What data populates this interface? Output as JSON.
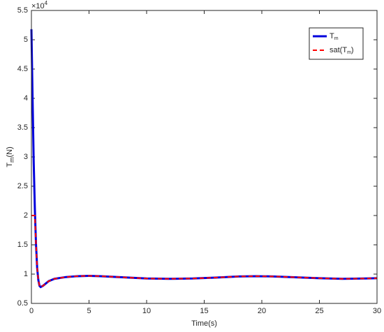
{
  "chart_data": {
    "type": "line",
    "xlabel": "Time(s)",
    "ylabel": {
      "text": "T",
      "sub": "m",
      "suffix": "(N)"
    },
    "y_multiplier": {
      "base": "×10",
      "exponent": "4"
    },
    "x": [
      0,
      0.1,
      0.2,
      0.3,
      0.4,
      0.5,
      0.6,
      0.7,
      0.8,
      1,
      1.5,
      2,
      3,
      4,
      5,
      6,
      8,
      10,
      12,
      14,
      16,
      18,
      19.5,
      21,
      23,
      25,
      27,
      29,
      30
    ],
    "series": [
      {
        "label": {
          "text": "T",
          "sub": "m"
        },
        "color": "#0000dd",
        "dash": false,
        "values": [
          5.18,
          4.0,
          2.9,
          2.1,
          1.5,
          1.1,
          0.9,
          0.8,
          0.78,
          0.8,
          0.88,
          0.92,
          0.95,
          0.965,
          0.97,
          0.965,
          0.945,
          0.925,
          0.92,
          0.925,
          0.94,
          0.96,
          0.965,
          0.96,
          0.945,
          0.93,
          0.92,
          0.925,
          0.93
        ]
      },
      {
        "label": {
          "text": "sat(T",
          "sub": "m",
          "suffix": ")"
        },
        "color": "#ff0000",
        "dash": true,
        "values": [
          2.0,
          2.0,
          2.0,
          2.0,
          1.5,
          1.1,
          0.9,
          0.8,
          0.78,
          0.8,
          0.88,
          0.92,
          0.95,
          0.965,
          0.97,
          0.965,
          0.945,
          0.925,
          0.92,
          0.925,
          0.94,
          0.96,
          0.965,
          0.96,
          0.945,
          0.93,
          0.92,
          0.925,
          0.93
        ]
      }
    ],
    "xlim": [
      0,
      30
    ],
    "xticks": [
      0,
      5,
      10,
      15,
      20,
      25,
      30
    ],
    "ylim": [
      0.5,
      5.5
    ],
    "yticks": [
      0.5,
      1,
      1.5,
      2,
      2.5,
      3,
      3.5,
      4,
      4.5,
      5,
      5.5
    ],
    "grid": false,
    "legend": "top-right"
  }
}
